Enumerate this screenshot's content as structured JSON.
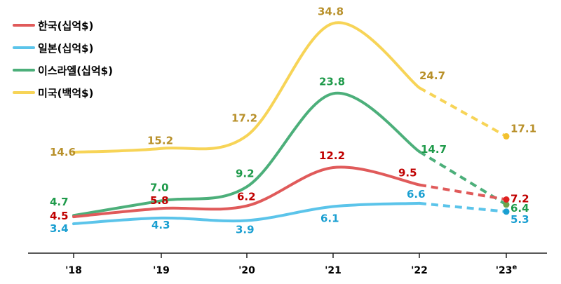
{
  "chart_data": {
    "type": "line",
    "categories": [
      "'18",
      "'19",
      "'20",
      "'21",
      "'22",
      "'23"
    ],
    "estimate_marker": "e",
    "projected_from_index": 4,
    "series": [
      {
        "name": "한국(십억$)",
        "color": "#e05a5a",
        "label_color": "#c00000",
        "values": [
          4.5,
          5.8,
          6.2,
          12.2,
          9.5,
          7.2
        ]
      },
      {
        "name": "일본(십억$)",
        "color": "#5bc4ea",
        "label_color": "#1a9fd1",
        "values": [
          3.4,
          4.3,
          3.9,
          6.1,
          6.6,
          5.3
        ]
      },
      {
        "name": "이스라엘(십억$)",
        "color": "#4caf7a",
        "label_color": "#1e9a4a",
        "values": [
          4.7,
          7.0,
          9.2,
          23.8,
          14.7,
          6.4
        ]
      },
      {
        "name": "미국(백억$)",
        "color": "#f7d457",
        "label_color": "#b8902a",
        "values": [
          14.6,
          15.2,
          17.2,
          34.8,
          24.7,
          17.1
        ]
      }
    ],
    "labels": [
      [
        "4.5",
        "5.8",
        "6.2",
        "12.2",
        "9.5",
        "7.2"
      ],
      [
        "3.4",
        "4.3",
        "3.9",
        "6.1",
        "6.6",
        "5.3"
      ],
      [
        "4.7",
        "7.0",
        "9.2",
        "23.8",
        "14.7",
        "6.4"
      ],
      [
        "14.6",
        "15.2",
        "17.2",
        "34.8",
        "24.7",
        "17.1"
      ]
    ],
    "ylim": [
      0,
      37
    ],
    "grid": false,
    "legend_placement": "top-left"
  }
}
